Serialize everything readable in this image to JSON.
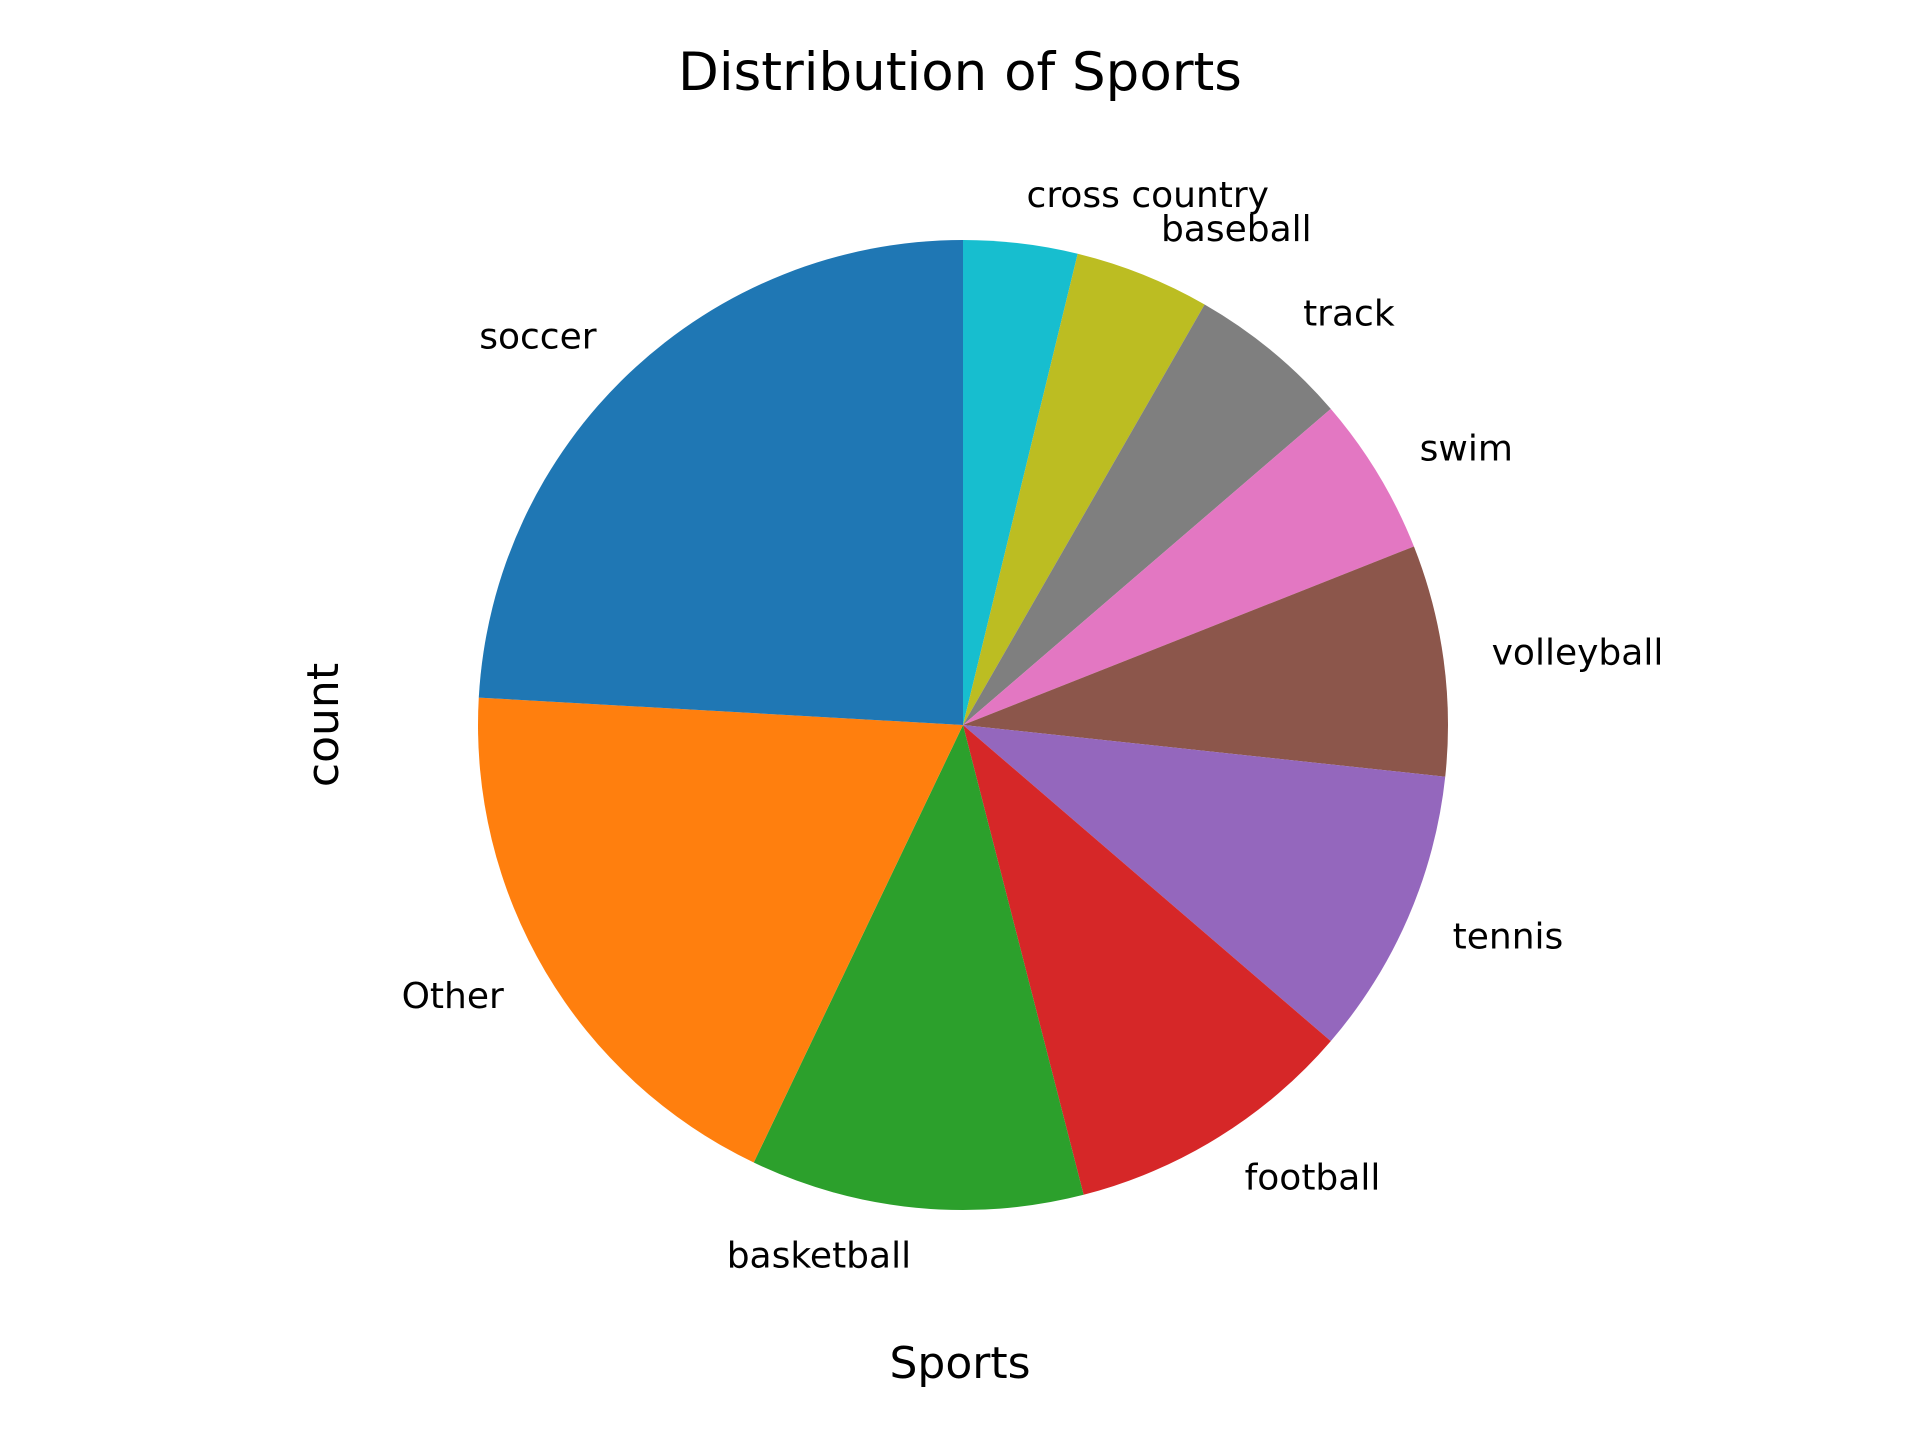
{
  "chart_data": {
    "type": "pie",
    "title": "Distribution of Sports",
    "xlabel": "Sports",
    "ylabel": "count",
    "start_angle_deg": 90,
    "direction": "clockwise",
    "slices": [
      {
        "label": "cross country",
        "value": 3.8,
        "color": "#17becf"
      },
      {
        "label": "baseball",
        "value": 4.5,
        "color": "#bcbd22"
      },
      {
        "label": "track",
        "value": 5.4,
        "color": "#7f7f7f"
      },
      {
        "label": "swim",
        "value": 5.3,
        "color": "#e377c2"
      },
      {
        "label": "volleyball",
        "value": 7.7,
        "color": "#8c564b"
      },
      {
        "label": "tennis",
        "value": 9.6,
        "color": "#9467bd"
      },
      {
        "label": "football",
        "value": 9.7,
        "color": "#d62728"
      },
      {
        "label": "basketball",
        "value": 11.1,
        "color": "#2ca02c"
      },
      {
        "label": "Other",
        "value": 18.8,
        "color": "#ff7f0e"
      },
      {
        "label": "soccer",
        "value": 24.1,
        "color": "#1f77b4"
      }
    ]
  }
}
